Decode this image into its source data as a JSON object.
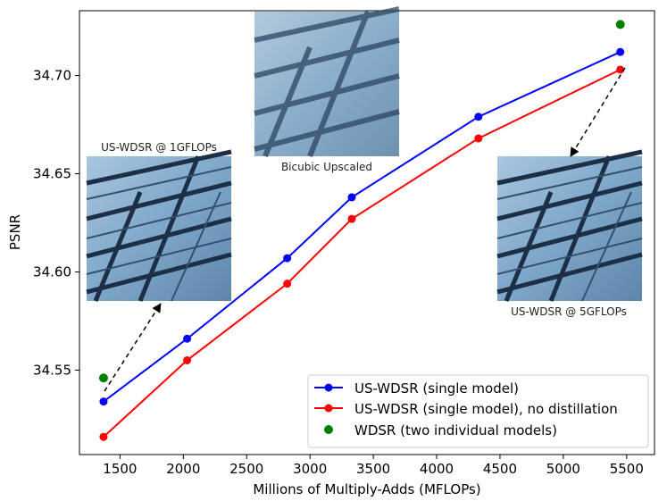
{
  "chart_data": {
    "type": "line",
    "xlabel": "Millions of Multiply-Adds (MFLOPs)",
    "ylabel": "PSNR",
    "xlim": [
      1180,
      5720
    ],
    "ylim": [
      34.507,
      34.733
    ],
    "xticks": [
      1500,
      2000,
      2500,
      3000,
      3500,
      4000,
      4500,
      5000,
      5500
    ],
    "yticks": [
      34.55,
      34.6,
      34.65,
      34.7
    ],
    "xtick_labels": [
      "1500",
      "2000",
      "2500",
      "3000",
      "3500",
      "4000",
      "4500",
      "5000",
      "5500"
    ],
    "ytick_labels": [
      "34.55",
      "34.60",
      "34.65",
      "34.70"
    ],
    "series": [
      {
        "name": "US-WDSR (single model)",
        "color": "#0000ff",
        "marker": "line",
        "x": [
          1370,
          2030,
          2820,
          3330,
          4330,
          5450
        ],
        "y": [
          34.534,
          34.566,
          34.607,
          34.638,
          34.679,
          34.712
        ]
      },
      {
        "name": "US-WDSR (single model), no distillation",
        "color": "#ff0000",
        "marker": "line",
        "x": [
          1370,
          2030,
          2820,
          3330,
          4330,
          5450
        ],
        "y": [
          34.516,
          34.555,
          34.594,
          34.627,
          34.668,
          34.703
        ]
      },
      {
        "name": "WDSR (two individual models)",
        "color": "#008000",
        "marker": "dot",
        "x": [
          1370,
          5450
        ],
        "y": [
          34.546,
          34.726
        ]
      }
    ],
    "legend_position": "bottom-right",
    "insets": [
      {
        "label": "US-WDSR @ 1GFLOPs"
      },
      {
        "label": "Bicubic Upscaled"
      },
      {
        "label": "US-WDSR @ 5GFLOPs"
      }
    ]
  }
}
